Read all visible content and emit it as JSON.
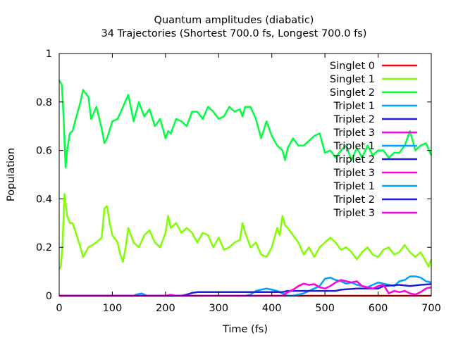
{
  "chart_data": {
    "type": "line",
    "title": "Quantum amplitudes (diabatic)",
    "subtitle": "34 Trajectories (Shortest 700.0 fs, Longest 700.0 fs)",
    "xlabel": "Time (fs)",
    "ylabel": "Population",
    "xlim": [
      0,
      700
    ],
    "ylim": [
      0,
      1
    ],
    "xticks": [
      0,
      100,
      200,
      300,
      400,
      500,
      600,
      700
    ],
    "yticks": [
      0,
      0.2,
      0.4,
      0.6,
      0.8,
      1
    ],
    "ytick_labels": [
      "0",
      "0.2",
      "0.4",
      "0.6",
      "0.8",
      "1"
    ],
    "grid": false,
    "legend_position": "top-right",
    "series": [
      {
        "name": "Singlet 0",
        "color": "#ff0000",
        "x": [
          0,
          700
        ],
        "y": [
          0,
          0
        ]
      },
      {
        "name": "Singlet 1",
        "color": "#80ff00",
        "x": [
          0,
          3,
          6,
          10,
          15,
          20,
          25,
          30,
          40,
          45,
          55,
          70,
          80,
          85,
          90,
          95,
          100,
          110,
          115,
          120,
          125,
          130,
          140,
          150,
          160,
          170,
          180,
          190,
          200,
          205,
          210,
          220,
          230,
          240,
          250,
          260,
          270,
          280,
          290,
          300,
          310,
          320,
          330,
          340,
          345,
          350,
          360,
          370,
          380,
          390,
          400,
          410,
          415,
          420,
          425,
          430,
          440,
          450,
          460,
          470,
          480,
          490,
          500,
          510,
          520,
          530,
          540,
          550,
          560,
          570,
          580,
          590,
          600,
          610,
          620,
          630,
          640,
          650,
          660,
          670,
          680,
          690,
          695,
          700
        ],
        "y": [
          0.11,
          0.12,
          0.2,
          0.42,
          0.33,
          0.3,
          0.3,
          0.27,
          0.2,
          0.16,
          0.2,
          0.22,
          0.24,
          0.36,
          0.37,
          0.3,
          0.25,
          0.22,
          0.17,
          0.14,
          0.2,
          0.28,
          0.22,
          0.2,
          0.25,
          0.27,
          0.22,
          0.2,
          0.26,
          0.33,
          0.28,
          0.3,
          0.26,
          0.28,
          0.26,
          0.22,
          0.26,
          0.25,
          0.2,
          0.24,
          0.19,
          0.2,
          0.22,
          0.23,
          0.3,
          0.26,
          0.2,
          0.22,
          0.17,
          0.16,
          0.2,
          0.28,
          0.25,
          0.33,
          0.29,
          0.28,
          0.25,
          0.22,
          0.17,
          0.2,
          0.16,
          0.2,
          0.22,
          0.24,
          0.22,
          0.19,
          0.2,
          0.18,
          0.15,
          0.18,
          0.2,
          0.17,
          0.16,
          0.19,
          0.2,
          0.17,
          0.18,
          0.21,
          0.18,
          0.16,
          0.18,
          0.14,
          0.12,
          0.15
        ]
      },
      {
        "name": "Singlet 2",
        "color": "#00ff40",
        "x": [
          0,
          5,
          8,
          12,
          15,
          20,
          25,
          30,
          40,
          45,
          55,
          60,
          70,
          80,
          85,
          90,
          100,
          110,
          120,
          130,
          140,
          150,
          160,
          170,
          180,
          190,
          200,
          205,
          210,
          220,
          230,
          240,
          250,
          260,
          270,
          280,
          290,
          300,
          310,
          320,
          330,
          340,
          345,
          350,
          360,
          370,
          380,
          390,
          400,
          410,
          420,
          425,
          430,
          440,
          450,
          460,
          470,
          480,
          490,
          500,
          510,
          520,
          530,
          540,
          550,
          560,
          570,
          580,
          590,
          600,
          610,
          620,
          630,
          640,
          650,
          660,
          670,
          680,
          690,
          700
        ],
        "y": [
          0.89,
          0.87,
          0.75,
          0.53,
          0.6,
          0.67,
          0.68,
          0.72,
          0.8,
          0.85,
          0.82,
          0.73,
          0.78,
          0.69,
          0.63,
          0.65,
          0.72,
          0.73,
          0.78,
          0.83,
          0.72,
          0.8,
          0.74,
          0.77,
          0.7,
          0.73,
          0.65,
          0.68,
          0.67,
          0.73,
          0.72,
          0.7,
          0.76,
          0.76,
          0.73,
          0.78,
          0.76,
          0.73,
          0.74,
          0.78,
          0.76,
          0.77,
          0.74,
          0.78,
          0.78,
          0.73,
          0.65,
          0.72,
          0.66,
          0.62,
          0.6,
          0.56,
          0.61,
          0.65,
          0.62,
          0.62,
          0.64,
          0.66,
          0.67,
          0.59,
          0.6,
          0.57,
          0.6,
          0.62,
          0.56,
          0.61,
          0.57,
          0.62,
          0.58,
          0.6,
          0.6,
          0.57,
          0.59,
          0.59,
          0.62,
          0.68,
          0.6,
          0.62,
          0.63,
          0.58
        ]
      },
      {
        "name": "Triplet 1",
        "color": "#00a0ff",
        "x": [
          0,
          140,
          145,
          155,
          160,
          165,
          350,
          360,
          370,
          380,
          390,
          400,
          410,
          420,
          430,
          440,
          450,
          460,
          470,
          480,
          490,
          500,
          510,
          520,
          530,
          540,
          550,
          560,
          570,
          580,
          590,
          600,
          610,
          620,
          630,
          640,
          650,
          660,
          670,
          680,
          690,
          700
        ],
        "y": [
          0,
          0,
          0.005,
          0.01,
          0.005,
          0,
          0,
          0.005,
          0.02,
          0.025,
          0.03,
          0.025,
          0.02,
          0.01,
          0,
          0,
          0.005,
          0.01,
          0.02,
          0.03,
          0.04,
          0.07,
          0.075,
          0.065,
          0.06,
          0.05,
          0.055,
          0.045,
          0.04,
          0.035,
          0.045,
          0.055,
          0.05,
          0.045,
          0.04,
          0.06,
          0.065,
          0.08,
          0.08,
          0.075,
          0.06,
          0.055
        ]
      },
      {
        "name": "Triplet 2",
        "color": "#2020d0",
        "x": [
          0,
          200,
          230,
          240,
          250,
          260,
          290,
          400,
          420,
          430,
          470,
          520,
          530,
          560,
          600,
          610,
          640,
          660,
          680,
          700
        ],
        "y": [
          0,
          0,
          0,
          0.005,
          0.012,
          0.015,
          0.015,
          0.015,
          0.015,
          0.02,
          0.02,
          0.02,
          0.025,
          0.03,
          0.03,
          0.04,
          0.045,
          0.04,
          0.045,
          0.048
        ]
      },
      {
        "name": "Triplet 3",
        "color": "#ff00e0",
        "x": [
          0,
          200,
          210,
          220,
          420,
          430,
          440,
          450,
          460,
          470,
          480,
          490,
          500,
          510,
          520,
          530,
          540,
          550,
          560,
          570,
          580,
          590,
          600,
          610,
          620,
          630,
          640,
          650,
          660,
          670,
          680,
          690,
          700
        ],
        "y": [
          0,
          0,
          0.004,
          0,
          0,
          0.015,
          0.025,
          0.04,
          0.05,
          0.045,
          0.048,
          0.035,
          0.03,
          0.04,
          0.055,
          0.065,
          0.06,
          0.055,
          0.06,
          0.04,
          0.035,
          0.03,
          0.04,
          0.045,
          0.01,
          0.02,
          0.015,
          0.02,
          0.01,
          0.005,
          0.015,
          0.03,
          0.035
        ]
      },
      {
        "name": "Triplet 1",
        "color": "#00a0ff",
        "x": [],
        "y": []
      },
      {
        "name": "Triplet 2",
        "color": "#2020d0",
        "x": [],
        "y": []
      },
      {
        "name": "Triplet 3",
        "color": "#ff00e0",
        "x": [],
        "y": []
      },
      {
        "name": "Triplet 1",
        "color": "#00a0ff",
        "x": [],
        "y": []
      },
      {
        "name": "Triplet 2",
        "color": "#2020d0",
        "x": [],
        "y": []
      },
      {
        "name": "Triplet 3",
        "color": "#ff00e0",
        "x": [],
        "y": []
      }
    ]
  }
}
